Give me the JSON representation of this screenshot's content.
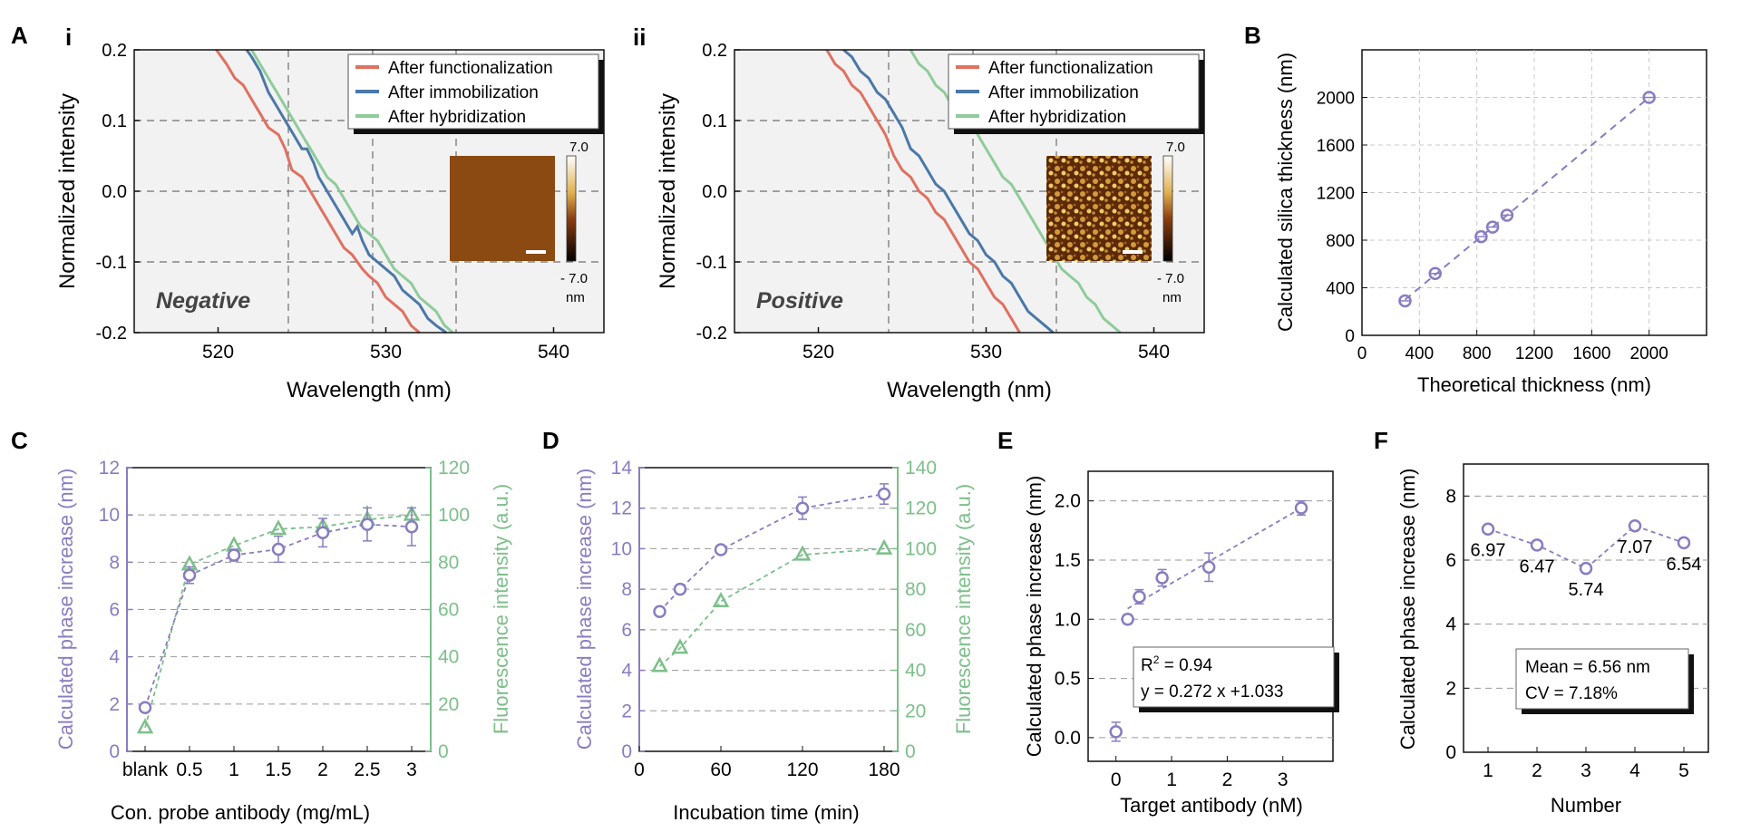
{
  "colors": {
    "functionalization": "#e07060",
    "immobilization": "#4a78a8",
    "hybridization": "#8fcc9a",
    "phase": "#8a7cc0",
    "fluor": "#7cbf8a",
    "panel_bg": "#f2f2f2"
  },
  "panel_labels": {
    "A": "A",
    "i": "i",
    "ii": "ii",
    "B": "B",
    "C": "C",
    "D": "D",
    "E": "E",
    "F": "F"
  },
  "colorbar": {
    "max": "7.0",
    "min": "- 7.0",
    "unit": "nm"
  },
  "chart_data": [
    {
      "id": "Ai",
      "type": "line",
      "xlabel": "Wavelength (nm)",
      "ylabel": "Normalized intensity",
      "xlim": [
        515,
        543
      ],
      "ylim": [
        -0.2,
        0.2
      ],
      "xticks": [
        "520",
        "530",
        "540"
      ],
      "xtick_values": [
        520,
        530,
        540
      ],
      "yticks": [
        "0.2",
        "0.1",
        "0.0",
        "-0.1",
        "-0.2"
      ],
      "ytick_values": [
        0.2,
        0.1,
        0.0,
        -0.1,
        -0.2
      ],
      "annotation": "Negative",
      "legend": [
        "After functionalization",
        "After immobilization",
        "After hybridization"
      ],
      "series": [
        {
          "name": "After functionalization",
          "points": [
            [
              519.9,
              0.2
            ],
            [
              520.5,
              0.18
            ],
            [
              521,
              0.16
            ],
            [
              521.5,
              0.15
            ],
            [
              522,
              0.13
            ],
            [
              522.5,
              0.11
            ],
            [
              523,
              0.09
            ],
            [
              523.6,
              0.08
            ],
            [
              524,
              0.06
            ],
            [
              524.4,
              0.03
            ],
            [
              525,
              0.02
            ],
            [
              525.5,
              0.0
            ],
            [
              526,
              -0.02
            ],
            [
              526.5,
              -0.04
            ],
            [
              527,
              -0.06
            ],
            [
              527.5,
              -0.08
            ],
            [
              528,
              -0.09
            ],
            [
              528.6,
              -0.11
            ],
            [
              529,
              -0.12
            ],
            [
              529.5,
              -0.13
            ],
            [
              530,
              -0.15
            ],
            [
              530.5,
              -0.16
            ],
            [
              531,
              -0.17
            ],
            [
              531.5,
              -0.19
            ],
            [
              532,
              -0.2
            ]
          ]
        },
        {
          "name": "After immobilization",
          "points": [
            [
              521.7,
              0.2
            ],
            [
              522,
              0.19
            ],
            [
              522.5,
              0.17
            ],
            [
              523,
              0.14
            ],
            [
              523.5,
              0.12
            ],
            [
              524,
              0.1
            ],
            [
              524.5,
              0.08
            ],
            [
              525,
              0.06
            ],
            [
              525.3,
              0.06
            ],
            [
              525.7,
              0.04
            ],
            [
              526,
              0.02
            ],
            [
              526.5,
              0.0
            ],
            [
              527,
              -0.02
            ],
            [
              527.5,
              -0.04
            ],
            [
              528,
              -0.06
            ],
            [
              528.3,
              -0.05
            ],
            [
              528.6,
              -0.07
            ],
            [
              529,
              -0.09
            ],
            [
              529.5,
              -0.1
            ],
            [
              530,
              -0.11
            ],
            [
              530.5,
              -0.12
            ],
            [
              531,
              -0.14
            ],
            [
              531.5,
              -0.15
            ],
            [
              532,
              -0.16
            ],
            [
              532.5,
              -0.18
            ],
            [
              533,
              -0.19
            ],
            [
              533.6,
              -0.2
            ]
          ]
        },
        {
          "name": "After hybridization",
          "points": [
            [
              522,
              0.2
            ],
            [
              522.5,
              0.18
            ],
            [
              523,
              0.16
            ],
            [
              523.5,
              0.14
            ],
            [
              524,
              0.12
            ],
            [
              524.5,
              0.1
            ],
            [
              525,
              0.08
            ],
            [
              525.5,
              0.06
            ],
            [
              526,
              0.04
            ],
            [
              526.5,
              0.02
            ],
            [
              527,
              0.01
            ],
            [
              527.5,
              -0.01
            ],
            [
              528,
              -0.03
            ],
            [
              528.5,
              -0.05
            ],
            [
              529,
              -0.06
            ],
            [
              529.5,
              -0.07
            ],
            [
              530,
              -0.09
            ],
            [
              530.5,
              -0.11
            ],
            [
              531,
              -0.12
            ],
            [
              531.5,
              -0.13
            ],
            [
              532,
              -0.15
            ],
            [
              532.5,
              -0.16
            ],
            [
              533,
              -0.17
            ],
            [
              533.5,
              -0.19
            ],
            [
              534,
              -0.2
            ]
          ]
        }
      ]
    },
    {
      "id": "Aii",
      "type": "line",
      "xlabel": "Wavelength (nm)",
      "ylabel": "Normalized intensity",
      "xlim": [
        515,
        543
      ],
      "ylim": [
        -0.2,
        0.2
      ],
      "xticks": [
        "520",
        "530",
        "540"
      ],
      "xtick_values": [
        520,
        530,
        540
      ],
      "yticks": [
        "0.2",
        "0.1",
        "0.0",
        "-0.1",
        "-0.2"
      ],
      "ytick_values": [
        0.2,
        0.1,
        0.0,
        -0.1,
        -0.2
      ],
      "annotation": "Positive",
      "legend": [
        "After functionalization",
        "After immobilization",
        "After hybridization"
      ],
      "series": [
        {
          "name": "After functionalization",
          "points": [
            [
              520.5,
              0.2
            ],
            [
              521,
              0.18
            ],
            [
              521.5,
              0.17
            ],
            [
              522,
              0.15
            ],
            [
              522.5,
              0.14
            ],
            [
              523,
              0.12
            ],
            [
              523.5,
              0.1
            ],
            [
              524,
              0.08
            ],
            [
              524.5,
              0.05
            ],
            [
              525,
              0.03
            ],
            [
              525.5,
              0.02
            ],
            [
              526,
              0.0
            ],
            [
              526.5,
              -0.01
            ],
            [
              527,
              -0.03
            ],
            [
              527.5,
              -0.04
            ],
            [
              528,
              -0.06
            ],
            [
              528.5,
              -0.08
            ],
            [
              529,
              -0.1
            ],
            [
              529.5,
              -0.11
            ],
            [
              530,
              -0.13
            ],
            [
              530.5,
              -0.15
            ],
            [
              531,
              -0.16
            ],
            [
              531.5,
              -0.18
            ],
            [
              532,
              -0.2
            ]
          ]
        },
        {
          "name": "After immobilization",
          "points": [
            [
              521.5,
              0.2
            ],
            [
              522,
              0.19
            ],
            [
              522.5,
              0.17
            ],
            [
              523,
              0.16
            ],
            [
              523.5,
              0.14
            ],
            [
              524,
              0.13
            ],
            [
              524.5,
              0.11
            ],
            [
              525,
              0.09
            ],
            [
              525.5,
              0.06
            ],
            [
              526,
              0.05
            ],
            [
              526.5,
              0.03
            ],
            [
              527,
              0.01
            ],
            [
              527.5,
              0.0
            ],
            [
              528,
              -0.02
            ],
            [
              528.5,
              -0.04
            ],
            [
              529,
              -0.06
            ],
            [
              529.5,
              -0.07
            ],
            [
              530,
              -0.09
            ],
            [
              530.5,
              -0.1
            ],
            [
              531,
              -0.12
            ],
            [
              531.5,
              -0.13
            ],
            [
              532,
              -0.15
            ],
            [
              532.5,
              -0.17
            ],
            [
              533,
              -0.18
            ],
            [
              533.5,
              -0.19
            ],
            [
              534,
              -0.2
            ]
          ]
        },
        {
          "name": "After hybridization",
          "points": [
            [
              525.5,
              0.2
            ],
            [
              526,
              0.18
            ],
            [
              526.5,
              0.17
            ],
            [
              527,
              0.15
            ],
            [
              527.5,
              0.14
            ],
            [
              528,
              0.12
            ],
            [
              528.5,
              0.11
            ],
            [
              529,
              0.1
            ],
            [
              529.5,
              0.08
            ],
            [
              530,
              0.06
            ],
            [
              530.5,
              0.04
            ],
            [
              531,
              0.02
            ],
            [
              531.5,
              0.01
            ],
            [
              532,
              -0.01
            ],
            [
              532.5,
              -0.03
            ],
            [
              533,
              -0.05
            ],
            [
              533.5,
              -0.07
            ],
            [
              534,
              -0.09
            ],
            [
              534.5,
              -0.11
            ],
            [
              535,
              -0.12
            ],
            [
              535.5,
              -0.13
            ],
            [
              536,
              -0.15
            ],
            [
              536.5,
              -0.16
            ],
            [
              537,
              -0.18
            ],
            [
              537.5,
              -0.19
            ],
            [
              538,
              -0.2
            ]
          ]
        }
      ]
    },
    {
      "id": "B",
      "type": "scatter",
      "xlabel": "Theoretical thickness (nm)",
      "ylabel": "Calculated silica thickness (nm)",
      "xlim": [
        0,
        2400
      ],
      "ylim": [
        0,
        2400
      ],
      "xticks": [
        "0",
        "400",
        "800",
        "1200",
        "1600",
        "2000"
      ],
      "xtick_values": [
        0,
        400,
        800,
        1200,
        1600,
        2000
      ],
      "yticks": [
        "0",
        "400",
        "800",
        "1200",
        "1600",
        "2000"
      ],
      "ytick_values": [
        0,
        400,
        800,
        1200,
        1600,
        2000
      ],
      "x": [
        300,
        510,
        830,
        910,
        1010,
        2000
      ],
      "y": [
        290,
        520,
        830,
        910,
        1010,
        2000
      ],
      "fit_line": [
        [
          300,
          300
        ],
        [
          2000,
          2000
        ]
      ]
    },
    {
      "id": "C",
      "type": "scatter",
      "xlabel": "Con. probe antibody (mg/mL)",
      "ylabel": "Calculated phase increase (nm)",
      "ylabel_right": "Fluorescence intensity (a.u.)",
      "categories": [
        "blank",
        "0.5",
        "1",
        "1.5",
        "2",
        "2.5",
        "3"
      ],
      "ylim": [
        0,
        12
      ],
      "ylim_right": [
        0,
        120
      ],
      "yticks": [
        "0",
        "2",
        "4",
        "6",
        "8",
        "10",
        "12"
      ],
      "ytick_values": [
        0,
        2,
        4,
        6,
        8,
        10,
        12
      ],
      "yticks_right": [
        "0",
        "20",
        "40",
        "60",
        "80",
        "100",
        "120"
      ],
      "series": [
        {
          "name": "Calculated phase increase (nm)",
          "axis": "left",
          "values": [
            1.85,
            7.45,
            8.3,
            8.55,
            9.25,
            9.6,
            9.5
          ],
          "errors": [
            0.1,
            0.35,
            0.25,
            0.55,
            0.6,
            0.7,
            0.8
          ]
        },
        {
          "name": "Fluorescence intensity (a.u.)",
          "axis": "right",
          "values": [
            10,
            79,
            87,
            94,
            95,
            98,
            100
          ],
          "errors": [
            0,
            0,
            0,
            0,
            0,
            6,
            0
          ]
        }
      ]
    },
    {
      "id": "D",
      "type": "scatter",
      "xlabel": "Incubation time (min)",
      "ylabel": "Calculated phase increase (nm)",
      "ylabel_right": "Fluorescence intensity (a.u.)",
      "xlim": [
        0,
        190
      ],
      "ylim": [
        0,
        14
      ],
      "ylim_right": [
        0,
        140
      ],
      "xticks": [
        "0",
        "60",
        "120",
        "180"
      ],
      "xtick_values": [
        0,
        60,
        120,
        180
      ],
      "yticks": [
        "0",
        "2",
        "4",
        "6",
        "8",
        "10",
        "12",
        "14"
      ],
      "ytick_values": [
        0,
        2,
        4,
        6,
        8,
        10,
        12,
        14
      ],
      "yticks_right": [
        "0",
        "20",
        "40",
        "60",
        "80",
        "100",
        "120",
        "140"
      ],
      "series": [
        {
          "name": "Calculated phase increase (nm)",
          "axis": "left",
          "x": [
            15,
            30,
            60,
            120,
            180
          ],
          "values": [
            6.9,
            8.0,
            9.95,
            12.0,
            12.7
          ],
          "errors": [
            0.15,
            0.2,
            0.15,
            0.55,
            0.5
          ]
        },
        {
          "name": "Fluorescence intensity (a.u.)",
          "axis": "right",
          "x": [
            15,
            30,
            60,
            120,
            180
          ],
          "values": [
            42,
            51,
            74,
            97,
            100
          ],
          "errors": [
            0,
            0,
            0,
            0,
            0
          ]
        }
      ]
    },
    {
      "id": "E",
      "type": "scatter",
      "xlabel": "Target antibody (nM)",
      "ylabel": "Calculated phase increase (nm)",
      "xlim": [
        -0.5,
        3.9
      ],
      "ylim": [
        -0.2,
        2.25
      ],
      "xticks": [
        "0",
        "1",
        "2",
        "3"
      ],
      "xtick_values": [
        0,
        1,
        2,
        3
      ],
      "yticks": [
        "0.0",
        "0.5",
        "1.0",
        "1.5",
        "2.0"
      ],
      "ytick_values": [
        0.0,
        0.5,
        1.0,
        1.5,
        2.0
      ],
      "x": [
        0,
        0.21,
        0.42,
        0.83,
        1.67,
        3.33
      ],
      "y": [
        0.05,
        1.0,
        1.19,
        1.35,
        1.44,
        1.94
      ],
      "errors": [
        0.08,
        0.04,
        0.06,
        0.07,
        0.12,
        0.06
      ],
      "fit_range": [
        0.21,
        3.33
      ],
      "annotation_r2_base": "R",
      "annotation_r2_exp": "2",
      "annotation_r2_rest": " = 0.94",
      "annotation_eq": "y = 0.272 x +1.033"
    },
    {
      "id": "F",
      "type": "line",
      "xlabel": "Number",
      "ylabel": "Calculated phase increase (nm)",
      "xlim": [
        0.5,
        5.5
      ],
      "ylim": [
        0,
        9
      ],
      "xticks": [
        "1",
        "2",
        "3",
        "4",
        "5"
      ],
      "xtick_values": [
        1,
        2,
        3,
        4,
        5
      ],
      "yticks": [
        "0",
        "2",
        "4",
        "6",
        "8"
      ],
      "ytick_values": [
        0,
        2,
        4,
        6,
        8
      ],
      "x": [
        1,
        2,
        3,
        4,
        5
      ],
      "y": [
        6.97,
        6.47,
        5.74,
        7.07,
        6.54
      ],
      "data_labels": [
        "6.97",
        "6.47",
        "5.74",
        "7.07",
        "6.54"
      ],
      "annotation_mean": "Mean = 6.56 nm",
      "annotation_cv": "CV = 7.18%"
    }
  ]
}
